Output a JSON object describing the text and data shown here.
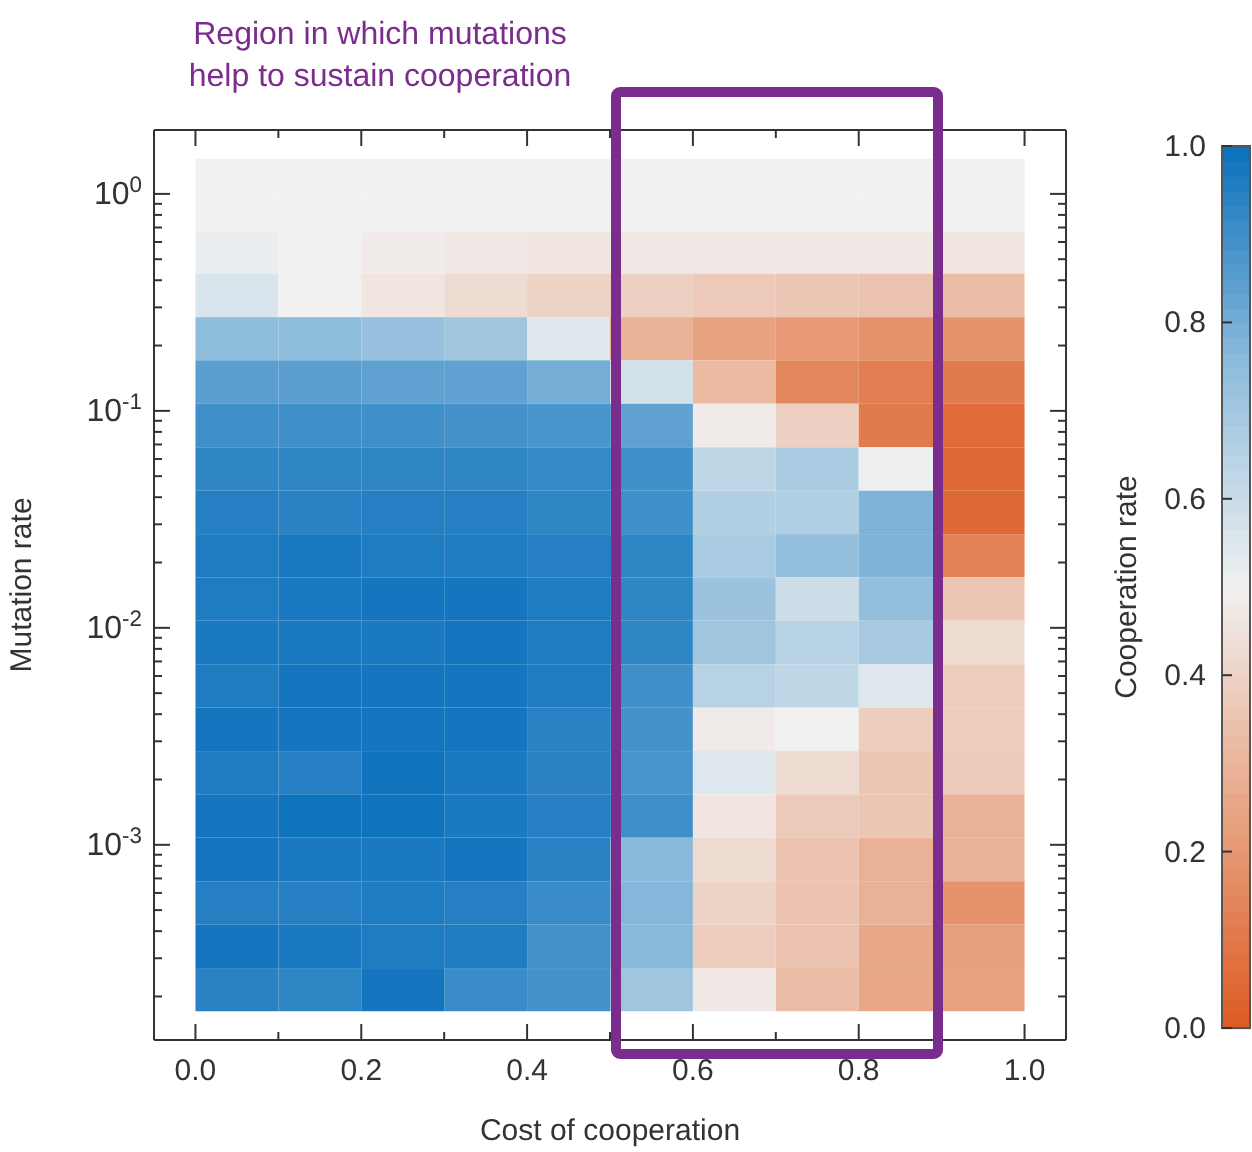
{
  "chart_data": {
    "type": "heatmap",
    "xlabel": "Cost of cooperation",
    "ylabel": "Mutation rate",
    "clabel": "Cooperation rate",
    "x": [
      0.05,
      0.15,
      0.25,
      0.35,
      0.45,
      0.55,
      0.65,
      0.75,
      0.85,
      0.95
    ],
    "y": [
      1.2,
      0.822,
      0.54,
      0.34,
      0.215,
      0.136,
      0.0855,
      0.054,
      0.034,
      0.0215,
      0.0136,
      0.00855,
      0.0054,
      0.0034,
      0.00215,
      0.00136,
      0.000855,
      0.00054,
      0.00034,
      0.000215
    ],
    "cells": [
      [
        0.5,
        0.5,
        0.5,
        0.5,
        0.5,
        0.5,
        0.5,
        0.5,
        0.5,
        0.5
      ],
      [
        0.5,
        0.5,
        0.5,
        0.5,
        0.5,
        0.5,
        0.5,
        0.5,
        0.5,
        0.5
      ],
      [
        0.52,
        0.5,
        0.48,
        0.47,
        0.46,
        0.47,
        0.47,
        0.47,
        0.47,
        0.46
      ],
      [
        0.56,
        0.5,
        0.46,
        0.43,
        0.4,
        0.39,
        0.37,
        0.36,
        0.35,
        0.33
      ],
      [
        0.75,
        0.75,
        0.73,
        0.71,
        0.55,
        0.29,
        0.24,
        0.21,
        0.19,
        0.19
      ],
      [
        0.85,
        0.85,
        0.84,
        0.84,
        0.8,
        0.58,
        0.32,
        0.15,
        0.12,
        0.11
      ],
      [
        0.9,
        0.9,
        0.9,
        0.89,
        0.88,
        0.84,
        0.48,
        0.39,
        0.11,
        0.06
      ],
      [
        0.93,
        0.93,
        0.93,
        0.93,
        0.92,
        0.9,
        0.63,
        0.68,
        0.51,
        0.05
      ],
      [
        0.95,
        0.94,
        0.95,
        0.95,
        0.93,
        0.9,
        0.66,
        0.66,
        0.78,
        0.05
      ],
      [
        0.96,
        0.97,
        0.96,
        0.96,
        0.95,
        0.93,
        0.68,
        0.74,
        0.78,
        0.13
      ],
      [
        0.96,
        0.97,
        0.98,
        0.98,
        0.96,
        0.93,
        0.72,
        0.59,
        0.74,
        0.36
      ],
      [
        0.97,
        0.97,
        0.97,
        0.98,
        0.96,
        0.93,
        0.71,
        0.65,
        0.69,
        0.43
      ],
      [
        0.96,
        0.98,
        0.98,
        0.98,
        0.96,
        0.9,
        0.65,
        0.63,
        0.55,
        0.38
      ],
      [
        0.98,
        0.98,
        0.98,
        0.98,
        0.94,
        0.89,
        0.48,
        0.5,
        0.38,
        0.38
      ],
      [
        0.96,
        0.95,
        0.99,
        0.97,
        0.94,
        0.88,
        0.55,
        0.43,
        0.36,
        0.37
      ],
      [
        0.98,
        0.99,
        0.99,
        0.97,
        0.95,
        0.9,
        0.46,
        0.37,
        0.36,
        0.29
      ],
      [
        0.98,
        0.97,
        0.97,
        0.98,
        0.94,
        0.76,
        0.43,
        0.35,
        0.29,
        0.29
      ],
      [
        0.95,
        0.95,
        0.96,
        0.95,
        0.91,
        0.77,
        0.4,
        0.35,
        0.29,
        0.19
      ],
      [
        0.98,
        0.97,
        0.96,
        0.96,
        0.89,
        0.76,
        0.38,
        0.35,
        0.26,
        0.23
      ],
      [
        0.94,
        0.93,
        0.98,
        0.91,
        0.89,
        0.71,
        0.47,
        0.33,
        0.26,
        0.24
      ]
    ],
    "xlim": [
      -0.05,
      1.05
    ],
    "xticks": [
      {
        "value": 0,
        "label": "0.0"
      },
      {
        "value": 0.1,
        "label": null
      },
      {
        "value": 0.2,
        "label": "0.2"
      },
      {
        "value": 0.3,
        "label": null
      },
      {
        "value": 0.4,
        "label": "0.4"
      },
      {
        "value": 0.5,
        "label": null
      },
      {
        "value": 0.6,
        "label": "0.6"
      },
      {
        "value": 0.7,
        "label": null
      },
      {
        "value": 0.8,
        "label": "0.8"
      },
      {
        "value": 0.9,
        "label": null
      },
      {
        "value": 1,
        "label": "1.0"
      }
    ],
    "ylim": [
      0.000126,
      1.97
    ],
    "log": "y",
    "yticks": [
      {
        "value": 0.0002,
        "label": null
      },
      {
        "value": 0.0003,
        "label": null
      },
      {
        "value": 0.0004,
        "label": null
      },
      {
        "value": 0.0005,
        "label": null
      },
      {
        "value": 0.0006,
        "label": null
      },
      {
        "value": 0.0007,
        "label": null
      },
      {
        "value": 0.0008,
        "label": null
      },
      {
        "value": 0.0009,
        "label": null
      },
      {
        "value": 0.001,
        "label": "10$^{-3}$"
      },
      {
        "value": 0.002,
        "label": null
      },
      {
        "value": 0.003,
        "label": null
      },
      {
        "value": 0.004,
        "label": null
      },
      {
        "value": 0.005,
        "label": null
      },
      {
        "value": 0.006,
        "label": null
      },
      {
        "value": 0.007,
        "label": null
      },
      {
        "value": 0.008,
        "label": null
      },
      {
        "value": 0.009,
        "label": null
      },
      {
        "value": 0.01,
        "label": "10$^{-2}$"
      },
      {
        "value": 0.02,
        "label": null
      },
      {
        "value": 0.03,
        "label": null
      },
      {
        "value": 0.04,
        "label": null
      },
      {
        "value": 0.05,
        "label": null
      },
      {
        "value": 0.06,
        "label": null
      },
      {
        "value": 0.07,
        "label": null
      },
      {
        "value": 0.08,
        "label": null
      },
      {
        "value": 0.09,
        "label": null
      },
      {
        "value": 0.1,
        "label": "10$^{-1}$"
      },
      {
        "value": 0.2,
        "label": null
      },
      {
        "value": 0.3,
        "label": null
      },
      {
        "value": 0.4,
        "label": null
      },
      {
        "value": 0.5,
        "label": null
      },
      {
        "value": 0.6,
        "label": null
      },
      {
        "value": 0.7,
        "label": null
      },
      {
        "value": 0.8,
        "label": null
      },
      {
        "value": 0.9,
        "label": null
      },
      {
        "value": 1,
        "label": "10$^{0}$"
      }
    ],
    "clim": [
      0,
      1
    ],
    "cticks": [
      {
        "value": 0,
        "label": "0.0"
      },
      {
        "value": 0.2,
        "label": "0.2"
      },
      {
        "value": 0.4,
        "label": "0.4"
      },
      {
        "value": 0.6,
        "label": "0.6"
      },
      {
        "value": 0.8,
        "label": "0.8"
      },
      {
        "value": 1,
        "label": "1.0"
      }
    ],
    "annotations": [
      "Region in which mutations\nhelp to sustain cooperation"
    ]
  }
}
